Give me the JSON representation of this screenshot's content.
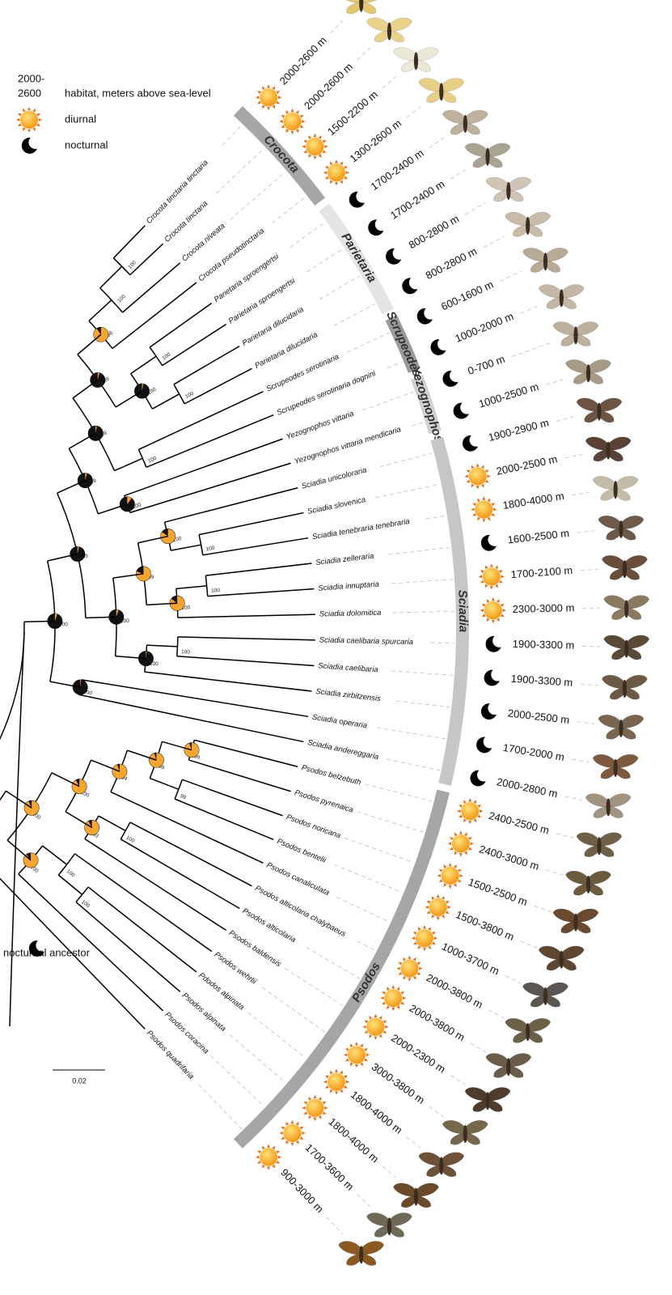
{
  "legend": {
    "range_lines": [
      "2000-",
      "2600"
    ],
    "range_caption": "habitat, meters above sea-level",
    "diurnal": "diurnal",
    "nocturnal": "nocturnal"
  },
  "root_label": "nocturnal ancestor",
  "scale_bar": "0.02",
  "clades": [
    {
      "name": "Crocota",
      "tips": [
        0,
        1,
        2,
        3
      ]
    },
    {
      "name": "Parietaria",
      "tips": [
        4,
        5,
        6,
        7
      ]
    },
    {
      "name": "Scrupeodes",
      "tips": [
        8,
        9
      ]
    },
    {
      "name": "Yezognophos",
      "tips": [
        10,
        11
      ]
    },
    {
      "name": "Sciadia",
      "tips": [
        12,
        13,
        14,
        15,
        16,
        17,
        18,
        19,
        20,
        21,
        22
      ]
    },
    {
      "name": "Psodos",
      "tips": [
        23,
        24,
        25,
        26,
        27,
        28,
        29,
        30,
        31,
        32,
        33,
        34,
        35
      ]
    }
  ],
  "taxa": [
    {
      "name": "Crocota tinctaria tinctaria",
      "altitude": "2000-2600 m",
      "activity": "diurnal"
    },
    {
      "name": "Crocota tinctaria",
      "altitude": "2000-2600 m",
      "activity": "diurnal"
    },
    {
      "name": "Crocota niveata",
      "altitude": "1500-2200 m",
      "activity": "diurnal"
    },
    {
      "name": "Crocota pseudotinctaria",
      "altitude": "1300-2600 m",
      "activity": "diurnal"
    },
    {
      "name": "Parietaria sproengertsi",
      "altitude": "1700-2400 m",
      "activity": "nocturnal"
    },
    {
      "name": "Parietaria sproengertsi",
      "altitude": "1700-2400 m",
      "activity": "nocturnal"
    },
    {
      "name": "Parietaria dilucidaria",
      "altitude": "800-2800 m",
      "activity": "nocturnal"
    },
    {
      "name": "Parietaria dilucidaria",
      "altitude": "800-2800 m",
      "activity": "nocturnal"
    },
    {
      "name": "Scrupeodes serotinaria",
      "altitude": "600-1600 m",
      "activity": "nocturnal"
    },
    {
      "name": "Scrupeodes serotinaria dognini",
      "altitude": "1000-2000 m",
      "activity": "nocturnal"
    },
    {
      "name": "Yezognophos vittaria",
      "altitude": "0-700 m",
      "activity": "nocturnal"
    },
    {
      "name": "Yezognophos vittaria mendicaria",
      "altitude": "1000-2500 m",
      "activity": "nocturnal"
    },
    {
      "name": "Sciadia unicoloraria",
      "altitude": "1900-2900 m",
      "activity": "nocturnal"
    },
    {
      "name": "Sciadia slovenica",
      "altitude": "2000-2500 m",
      "activity": "diurnal"
    },
    {
      "name": "Sciadia tenebraria tenebraria",
      "altitude": "1800-4000 m",
      "activity": "diurnal"
    },
    {
      "name": "Sciadia zelleraria",
      "altitude": "1600-2500 m",
      "activity": "nocturnal"
    },
    {
      "name": "Sciadia innuptaria",
      "altitude": "1700-2100 m",
      "activity": "diurnal"
    },
    {
      "name": "Sciadia dolomitica",
      "altitude": "2300-3000 m",
      "activity": "diurnal"
    },
    {
      "name": "Sciadia caelibaria spurcaria",
      "altitude": "1900-3300 m",
      "activity": "nocturnal"
    },
    {
      "name": "Sciadia caelibaria",
      "altitude": "1900-3300 m",
      "activity": "nocturnal"
    },
    {
      "name": "Sciadia zirbitzensis",
      "altitude": "2000-2500 m",
      "activity": "nocturnal"
    },
    {
      "name": "Sciadia operaria",
      "altitude": "1700-2000 m",
      "activity": "nocturnal"
    },
    {
      "name": "Sciadia andereggaria",
      "altitude": "2000-2800 m",
      "activity": "nocturnal"
    },
    {
      "name": "Psodos belzebuth",
      "altitude": "2400-2500 m",
      "activity": "diurnal"
    },
    {
      "name": "Psodos pyrenaica",
      "altitude": "2400-3000 m",
      "activity": "diurnal"
    },
    {
      "name": "Psodos noricana",
      "altitude": "1500-2500 m",
      "activity": "diurnal"
    },
    {
      "name": "Psodos bentelii",
      "altitude": "1500-3800 m",
      "activity": "diurnal"
    },
    {
      "name": "Psodos canaliculata",
      "altitude": "1000-3700 m",
      "activity": "diurnal"
    },
    {
      "name": "Psodos alticolaria chalybaeus",
      "altitude": "2000-3800 m",
      "activity": "diurnal"
    },
    {
      "name": "Psodos alticolaria",
      "altitude": "2000-3800 m",
      "activity": "diurnal"
    },
    {
      "name": "Psodos baldensis",
      "altitude": "2000-2300 m",
      "activity": "diurnal"
    },
    {
      "name": "Psodos wehrlii",
      "altitude": "3000-3800 m",
      "activity": "diurnal"
    },
    {
      "name": "Pdodos alpinata",
      "altitude": "1800-4000 m",
      "activity": "diurnal"
    },
    {
      "name": "Psodos alpinata",
      "altitude": "1800-4000 m",
      "activity": "diurnal"
    },
    {
      "name": "Psodos coracina",
      "altitude": "1700-3600 m",
      "activity": "diurnal"
    },
    {
      "name": "Psodos quadrifaria",
      "altitude": "900-3000 m",
      "activity": "diurnal"
    }
  ],
  "tree": {
    "children": [
      {
        "support": 100,
        "p_diurnal": 0.05,
        "children": [
          {
            "support": 99,
            "p_diurnal": 0.03,
            "children": [
              {
                "support": 99,
                "p_diurnal": 0.04,
                "children": [
                  {
                    "support": 99,
                    "p_diurnal": 0.03,
                    "children": [
                      {
                        "support": 99,
                        "p_diurnal": 0.04,
                        "children": [
                          {
                            "support": 98,
                            "p_diurnal": 0.9,
                            "children": [
                              {
                                "support": 100,
                                "children": [
                                  {
                                    "support": 100,
                                    "children": [
                                      0,
                                      1
                                    ]
                                  },
                                  2
                                ]
                              },
                              3
                            ]
                          },
                          {
                            "support": 100,
                            "p_diurnal": 0.03,
                            "children": [
                              {
                                "support": 100,
                                "children": [
                                  4,
                                  5
                                ]
                              },
                              {
                                "support": 100,
                                "children": [
                                  6,
                                  7
                                ]
                              }
                            ]
                          }
                        ]
                      },
                      {
                        "support": 100,
                        "children": [
                          8,
                          9
                        ]
                      }
                    ]
                  },
                  {
                    "support": 100,
                    "p_diurnal": 0.1,
                    "children": [
                      10,
                      11
                    ]
                  }
                ]
              },
              {
                "support": 100,
                "p_diurnal": 0.05,
                "children": [
                  {
                    "support": 99,
                    "p_diurnal": 0.8,
                    "children": [
                      {
                        "support": 100,
                        "p_diurnal": 0.85,
                        "children": [
                          12,
                          {
                            "support": 100,
                            "children": [
                              13,
                              14
                            ]
                          }
                        ]
                      },
                      {
                        "support": 100,
                        "p_diurnal": 0.85,
                        "children": [
                          {
                            "support": 100,
                            "children": [
                              15,
                              16
                            ]
                          },
                          17
                        ]
                      }
                    ]
                  },
                  {
                    "support": 100,
                    "p_diurnal": 0.02,
                    "children": [
                      {
                        "support": 100,
                        "children": [
                          18,
                          19
                        ]
                      },
                      20
                    ]
                  }
                ]
              }
            ]
          },
          {
            "support": 100,
            "p_diurnal": 0.02,
            "children": [
              21,
              22
            ]
          }
        ]
      },
      {
        "support": 100,
        "p_diurnal": 0.95,
        "children": [
          {
            "support": 100,
            "p_diurnal": 0.93,
            "children": [
              {
                "support": 100,
                "p_diurnal": 0.92,
                "children": [
                  {
                    "support": 94,
                    "p_diurnal": 0.95,
                    "children": [
                      {
                        "support": 99,
                        "p_diurnal": 0.95,
                        "children": [
                          {
                            "support": 99,
                            "p_diurnal": 0.95,
                            "children": [
                              23,
                              24
                            ]
                          },
                          {
                            "support": 99,
                            "children": [
                              25,
                              26
                            ]
                          }
                        ]
                      },
                      27
                    ]
                  },
                  {
                    "support": 93,
                    "p_diurnal": 0.92,
                    "children": [
                      {
                        "support": 100,
                        "children": [
                          28,
                          29
                        ]
                      },
                      30
                    ]
                  }
                ]
              },
              {
                "support": 100,
                "p_diurnal": 0.9,
                "children": [
                  {
                    "support": 100,
                    "children": [
                      31,
                      {
                        "support": 100,
                        "children": [
                          32,
                          33
                        ]
                      }
                    ]
                  },
                  34
                ]
              }
            ]
          },
          35
        ]
      }
    ]
  }
}
